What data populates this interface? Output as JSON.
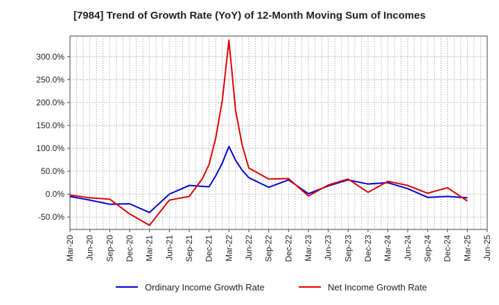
{
  "chart_data": {
    "type": "line",
    "title": "[7984]  Trend of Growth Rate (YoY) of 12-Month Moving Sum of Incomes",
    "xlabel": "",
    "ylabel": "",
    "x": [
      "Mar-20",
      "Jun-20",
      "Sep-20",
      "Dec-20",
      "Mar-21",
      "Jun-21",
      "Sep-21",
      "Dec-21",
      "Mar-22",
      "Jun-22",
      "Sep-22",
      "Dec-22",
      "Mar-23",
      "Jun-23",
      "Sep-23",
      "Dec-23",
      "Mar-24",
      "Jun-24",
      "Sep-24",
      "Dec-24",
      "Mar-25",
      "Jun-25"
    ],
    "ylim": [
      -77,
      345
    ],
    "yticks": [
      -50,
      0,
      50,
      100,
      150,
      200,
      250,
      300
    ],
    "ytick_labels": [
      "-50.0%",
      "0.0%",
      "50.0%",
      "100.0%",
      "150.0%",
      "200.0%",
      "250.0%",
      "300.0%"
    ],
    "grid": true,
    "legend_position": "bottom",
    "series": [
      {
        "name": "Ordinary Income Growth Rate",
        "color": "#0000cc",
        "points": [
          [
            "Mar-20",
            -5
          ],
          [
            "Jun-20",
            -13
          ],
          [
            "Sep-20",
            -22
          ],
          [
            "Dec-20",
            -21
          ],
          [
            "Mar-21",
            -40
          ],
          [
            "Jun-21",
            0
          ],
          [
            "Sep-21",
            19
          ],
          [
            "Dec-21",
            16
          ],
          [
            "Jan-22",
            40
          ],
          [
            "Feb-22",
            68
          ],
          [
            "Mar-22",
            104
          ],
          [
            "Apr-22",
            74
          ],
          [
            "May-22",
            52
          ],
          [
            "Jun-22",
            36
          ],
          [
            "Sep-22",
            15
          ],
          [
            "Dec-22",
            31
          ],
          [
            "Mar-23",
            1
          ],
          [
            "Jun-23",
            18
          ],
          [
            "Sep-23",
            31
          ],
          [
            "Dec-23",
            22
          ],
          [
            "Mar-24",
            25
          ],
          [
            "Jun-24",
            12
          ],
          [
            "Sep-24",
            -7
          ],
          [
            "Dec-24",
            -5
          ],
          [
            "Mar-25",
            -8
          ]
        ]
      },
      {
        "name": "Net Income Growth Rate",
        "color": "#dd0000",
        "points": [
          [
            "Mar-20",
            -2
          ],
          [
            "Jun-20",
            -8
          ],
          [
            "Sep-20",
            -11
          ],
          [
            "Dec-20",
            -43
          ],
          [
            "Mar-21",
            -68
          ],
          [
            "Jun-21",
            -13
          ],
          [
            "Sep-21",
            -5
          ],
          [
            "Nov-21",
            34
          ],
          [
            "Dec-21",
            65
          ],
          [
            "Jan-22",
            122
          ],
          [
            "Feb-22",
            205
          ],
          [
            "Mar-22",
            336
          ],
          [
            "Apr-22",
            183
          ],
          [
            "May-22",
            107
          ],
          [
            "Jun-22",
            57
          ],
          [
            "Sep-22",
            33
          ],
          [
            "Dec-22",
            34
          ],
          [
            "Mar-23",
            -4
          ],
          [
            "Jun-23",
            20
          ],
          [
            "Sep-23",
            33
          ],
          [
            "Dec-23",
            4
          ],
          [
            "Mar-24",
            28
          ],
          [
            "Jun-24",
            19
          ],
          [
            "Sep-24",
            2
          ],
          [
            "Dec-24",
            14
          ],
          [
            "Mar-25",
            -15
          ]
        ]
      }
    ]
  }
}
